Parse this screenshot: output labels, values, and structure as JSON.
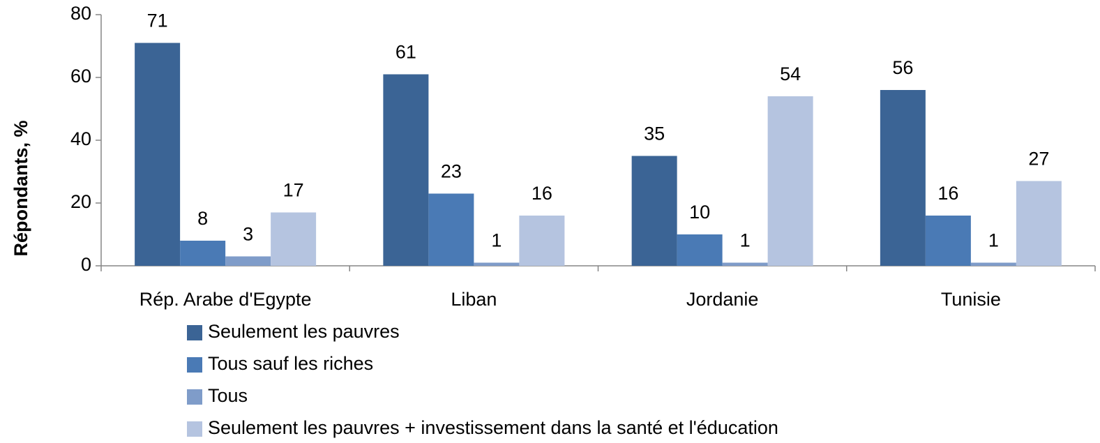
{
  "chart_data": {
    "type": "bar",
    "y_label": "Répondants, %",
    "categories": [
      "Rép. Arabe d'Egypte",
      "Liban",
      "Jordanie",
      "Tunisie"
    ],
    "series": [
      {
        "name": "Seulement les pauvres",
        "color": "#3b6495",
        "values": [
          71,
          61,
          35,
          56
        ]
      },
      {
        "name": "Tous sauf les riches",
        "color": "#4a7ab5",
        "values": [
          8,
          23,
          10,
          16
        ]
      },
      {
        "name": "Tous",
        "color": "#7f9cc9",
        "values": [
          3,
          1,
          1,
          1
        ]
      },
      {
        "name": "Seulement les pauvres + investissement dans la santé et l'éducation",
        "color": "#b5c4e0",
        "values": [
          17,
          16,
          54,
          27
        ]
      }
    ],
    "ylim": [
      0,
      80
    ],
    "yticks": [
      0,
      20,
      40,
      60,
      80
    ],
    "grid": false,
    "legend": "bottom"
  }
}
